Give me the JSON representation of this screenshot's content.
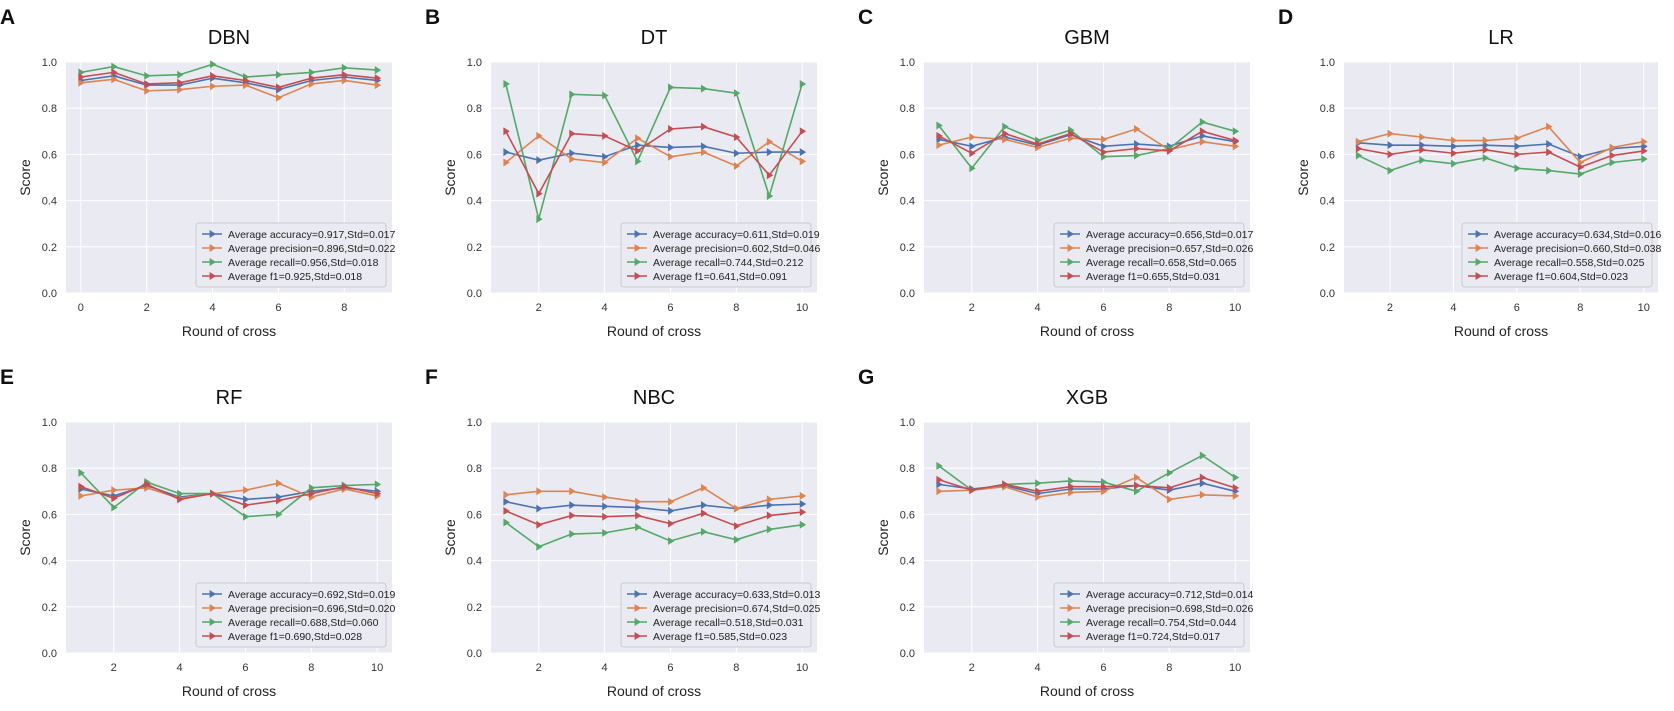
{
  "figure": {
    "series_names": [
      "accuracy",
      "precision",
      "recall",
      "f1"
    ],
    "colors": {
      "accuracy": "#4c72b0",
      "precision": "#dd8452",
      "recall": "#55a868",
      "f1": "#c44e52"
    }
  },
  "chart_data": [
    {
      "letter": "A",
      "title": "DBN",
      "type": "line",
      "xlabel": "Round of cross",
      "ylabel": "Score",
      "xlim": [
        -0.45,
        9.45
      ],
      "ylim": [
        0,
        1.0
      ],
      "xticks": [
        0,
        2,
        4,
        6,
        8
      ],
      "yticks": [
        0,
        0.2,
        0.4,
        0.6,
        0.8,
        1.0
      ],
      "ytick_labels": [
        "0.0",
        "0.2",
        "0.4",
        "0.6",
        "0.8",
        "1.0"
      ],
      "x": [
        0,
        1,
        2,
        3,
        4,
        5,
        6,
        7,
        8,
        9
      ],
      "series": [
        {
          "name": "accuracy",
          "legend": "Average accuracy=0.917,Std=0.017",
          "values": [
            0.92,
            0.94,
            0.9,
            0.9,
            0.93,
            0.91,
            0.88,
            0.92,
            0.935,
            0.92
          ]
        },
        {
          "name": "precision",
          "legend": "Average precision=0.896,Std=0.022",
          "values": [
            0.91,
            0.925,
            0.875,
            0.88,
            0.895,
            0.9,
            0.845,
            0.905,
            0.92,
            0.9
          ]
        },
        {
          "name": "recall",
          "legend": "Average recall=0.956,Std=0.018",
          "values": [
            0.955,
            0.98,
            0.94,
            0.945,
            0.99,
            0.935,
            0.945,
            0.955,
            0.975,
            0.965
          ]
        },
        {
          "name": "f1",
          "legend": "Average f1=0.925,Std=0.018",
          "values": [
            0.935,
            0.955,
            0.905,
            0.91,
            0.94,
            0.92,
            0.89,
            0.93,
            0.945,
            0.93
          ]
        }
      ]
    },
    {
      "letter": "B",
      "title": "DT",
      "type": "line",
      "xlabel": "Round of cross",
      "ylabel": "Score",
      "xlim": [
        0.55,
        10.45
      ],
      "ylim": [
        0,
        1.0
      ],
      "xticks": [
        2,
        4,
        6,
        8,
        10
      ],
      "yticks": [
        0,
        0.2,
        0.4,
        0.6,
        0.8,
        1.0
      ],
      "ytick_labels": [
        "0.0",
        "0.2",
        "0.4",
        "0.6",
        "0.8",
        "1.0"
      ],
      "x": [
        1,
        2,
        3,
        4,
        5,
        6,
        7,
        8,
        9,
        10
      ],
      "series": [
        {
          "name": "accuracy",
          "legend": "Average accuracy=0.611,Std=0.019",
          "values": [
            0.61,
            0.575,
            0.605,
            0.59,
            0.64,
            0.63,
            0.635,
            0.605,
            0.61,
            0.61
          ]
        },
        {
          "name": "precision",
          "legend": "Average precision=0.602,Std=0.046",
          "values": [
            0.565,
            0.68,
            0.58,
            0.565,
            0.67,
            0.59,
            0.61,
            0.55,
            0.655,
            0.57
          ]
        },
        {
          "name": "recall",
          "legend": "Average recall=0.744,Std=0.212",
          "values": [
            0.905,
            0.32,
            0.86,
            0.855,
            0.57,
            0.89,
            0.885,
            0.865,
            0.42,
            0.905
          ]
        },
        {
          "name": "f1",
          "legend": "Average f1=0.641,Std=0.091",
          "values": [
            0.7,
            0.43,
            0.69,
            0.68,
            0.615,
            0.71,
            0.72,
            0.675,
            0.51,
            0.7
          ]
        }
      ]
    },
    {
      "letter": "C",
      "title": "GBM",
      "type": "line",
      "xlabel": "Round of cross",
      "ylabel": "Score",
      "xlim": [
        0.55,
        10.45
      ],
      "ylim": [
        0,
        1.0
      ],
      "xticks": [
        2,
        4,
        6,
        8,
        10
      ],
      "yticks": [
        0,
        0.2,
        0.4,
        0.6,
        0.8,
        1.0
      ],
      "ytick_labels": [
        "0.0",
        "0.2",
        "0.4",
        "0.6",
        "0.8",
        "1.0"
      ],
      "x": [
        1,
        2,
        3,
        4,
        5,
        6,
        7,
        8,
        9,
        10
      ],
      "series": [
        {
          "name": "accuracy",
          "legend": "Average accuracy=0.656,Std=0.017",
          "values": [
            0.665,
            0.635,
            0.675,
            0.64,
            0.685,
            0.635,
            0.645,
            0.635,
            0.68,
            0.655
          ]
        },
        {
          "name": "precision",
          "legend": "Average precision=0.657,Std=0.026",
          "values": [
            0.64,
            0.675,
            0.665,
            0.63,
            0.67,
            0.665,
            0.71,
            0.62,
            0.655,
            0.635
          ]
        },
        {
          "name": "recall",
          "legend": "Average recall=0.658,Std=0.065",
          "values": [
            0.725,
            0.54,
            0.72,
            0.66,
            0.705,
            0.59,
            0.595,
            0.625,
            0.74,
            0.7
          ]
        },
        {
          "name": "f1",
          "legend": "Average f1=0.655,Std=0.031",
          "values": [
            0.68,
            0.605,
            0.69,
            0.645,
            0.69,
            0.61,
            0.625,
            0.615,
            0.7,
            0.66
          ]
        }
      ]
    },
    {
      "letter": "D",
      "title": "LR",
      "type": "line",
      "xlabel": "Round of cross",
      "ylabel": "Score",
      "xlim": [
        0.55,
        10.45
      ],
      "ylim": [
        0,
        1.0
      ],
      "xticks": [
        2,
        4,
        6,
        8,
        10
      ],
      "yticks": [
        0,
        0.2,
        0.4,
        0.6,
        0.8,
        1.0
      ],
      "ytick_labels": [
        "0.0",
        "0.2",
        "0.4",
        "0.6",
        "0.8",
        "1.0"
      ],
      "x": [
        1,
        2,
        3,
        4,
        5,
        6,
        7,
        8,
        9,
        10
      ],
      "series": [
        {
          "name": "accuracy",
          "legend": "Average accuracy=0.634,Std=0.016",
          "values": [
            0.65,
            0.64,
            0.64,
            0.635,
            0.64,
            0.635,
            0.645,
            0.59,
            0.625,
            0.635
          ]
        },
        {
          "name": "precision",
          "legend": "Average precision=0.660,Std=0.038",
          "values": [
            0.655,
            0.69,
            0.675,
            0.66,
            0.66,
            0.67,
            0.72,
            0.565,
            0.63,
            0.655
          ]
        },
        {
          "name": "recall",
          "legend": "Average recall=0.558,Std=0.025",
          "values": [
            0.595,
            0.53,
            0.575,
            0.56,
            0.585,
            0.54,
            0.53,
            0.515,
            0.565,
            0.58
          ]
        },
        {
          "name": "f1",
          "legend": "Average f1=0.604,Std=0.023",
          "values": [
            0.625,
            0.6,
            0.62,
            0.605,
            0.62,
            0.6,
            0.61,
            0.545,
            0.595,
            0.615
          ]
        }
      ]
    },
    {
      "letter": "E",
      "title": "RF",
      "type": "line",
      "xlabel": "Round of cross",
      "ylabel": "Score",
      "xlim": [
        0.55,
        10.45
      ],
      "ylim": [
        0,
        1.0
      ],
      "xticks": [
        2,
        4,
        6,
        8,
        10
      ],
      "yticks": [
        0,
        0.2,
        0.4,
        0.6,
        0.8,
        1.0
      ],
      "ytick_labels": [
        "0.0",
        "0.2",
        "0.4",
        "0.6",
        "0.8",
        "1.0"
      ],
      "x": [
        1,
        2,
        3,
        4,
        5,
        6,
        7,
        8,
        9,
        10
      ],
      "series": [
        {
          "name": "accuracy",
          "legend": "Average accuracy=0.692,Std=0.019",
          "values": [
            0.71,
            0.68,
            0.725,
            0.675,
            0.69,
            0.665,
            0.675,
            0.7,
            0.715,
            0.7
          ]
        },
        {
          "name": "precision",
          "legend": "Average precision=0.696,Std=0.020",
          "values": [
            0.68,
            0.705,
            0.715,
            0.67,
            0.69,
            0.705,
            0.735,
            0.675,
            0.71,
            0.68
          ]
        },
        {
          "name": "recall",
          "legend": "Average recall=0.688,Std=0.060",
          "values": [
            0.78,
            0.63,
            0.74,
            0.69,
            0.69,
            0.59,
            0.6,
            0.715,
            0.725,
            0.73
          ]
        },
        {
          "name": "f1",
          "legend": "Average f1=0.690,Std=0.028",
          "values": [
            0.72,
            0.67,
            0.73,
            0.665,
            0.69,
            0.64,
            0.66,
            0.69,
            0.72,
            0.69
          ]
        }
      ]
    },
    {
      "letter": "F",
      "title": "NBC",
      "type": "line",
      "xlabel": "Round of cross",
      "ylabel": "Score",
      "xlim": [
        0.55,
        10.45
      ],
      "ylim": [
        0,
        1.0
      ],
      "xticks": [
        2,
        4,
        6,
        8,
        10
      ],
      "yticks": [
        0,
        0.2,
        0.4,
        0.6,
        0.8,
        1.0
      ],
      "ytick_labels": [
        "0.0",
        "0.2",
        "0.4",
        "0.6",
        "0.8",
        "1.0"
      ],
      "x": [
        1,
        2,
        3,
        4,
        5,
        6,
        7,
        8,
        9,
        10
      ],
      "series": [
        {
          "name": "accuracy",
          "legend": "Average accuracy=0.633,Std=0.013",
          "values": [
            0.655,
            0.625,
            0.64,
            0.635,
            0.63,
            0.615,
            0.64,
            0.625,
            0.64,
            0.645
          ]
        },
        {
          "name": "precision",
          "legend": "Average precision=0.674,Std=0.025",
          "values": [
            0.685,
            0.7,
            0.7,
            0.675,
            0.655,
            0.655,
            0.715,
            0.625,
            0.665,
            0.68
          ]
        },
        {
          "name": "recall",
          "legend": "Average recall=0.518,Std=0.031",
          "values": [
            0.565,
            0.46,
            0.515,
            0.52,
            0.545,
            0.485,
            0.525,
            0.49,
            0.535,
            0.555
          ]
        },
        {
          "name": "f1",
          "legend": "Average f1=0.585,Std=0.023",
          "values": [
            0.615,
            0.555,
            0.595,
            0.59,
            0.595,
            0.56,
            0.605,
            0.55,
            0.595,
            0.61
          ]
        }
      ]
    },
    {
      "letter": "G",
      "title": "XGB",
      "type": "line",
      "xlabel": "Round of cross",
      "ylabel": "Score",
      "xlim": [
        0.55,
        10.45
      ],
      "ylim": [
        0,
        1.0
      ],
      "xticks": [
        2,
        4,
        6,
        8,
        10
      ],
      "yticks": [
        0,
        0.2,
        0.4,
        0.6,
        0.8,
        1.0
      ],
      "ytick_labels": [
        "0.0",
        "0.2",
        "0.4",
        "0.6",
        "0.8",
        "1.0"
      ],
      "x": [
        1,
        2,
        3,
        4,
        5,
        6,
        7,
        8,
        9,
        10
      ],
      "series": [
        {
          "name": "accuracy",
          "legend": "Average accuracy=0.712,Std=0.014",
          "values": [
            0.73,
            0.71,
            0.725,
            0.69,
            0.71,
            0.71,
            0.725,
            0.705,
            0.735,
            0.7
          ]
        },
        {
          "name": "precision",
          "legend": "Average precision=0.698,Std=0.026",
          "values": [
            0.7,
            0.705,
            0.72,
            0.675,
            0.695,
            0.7,
            0.76,
            0.665,
            0.685,
            0.68
          ]
        },
        {
          "name": "recall",
          "legend": "Average recall=0.754,Std=0.044",
          "values": [
            0.81,
            0.705,
            0.73,
            0.735,
            0.745,
            0.74,
            0.7,
            0.78,
            0.855,
            0.76
          ]
        },
        {
          "name": "f1",
          "legend": "Average f1=0.724,Std=0.017",
          "values": [
            0.75,
            0.705,
            0.73,
            0.7,
            0.72,
            0.72,
            0.725,
            0.715,
            0.76,
            0.715
          ]
        }
      ]
    }
  ]
}
